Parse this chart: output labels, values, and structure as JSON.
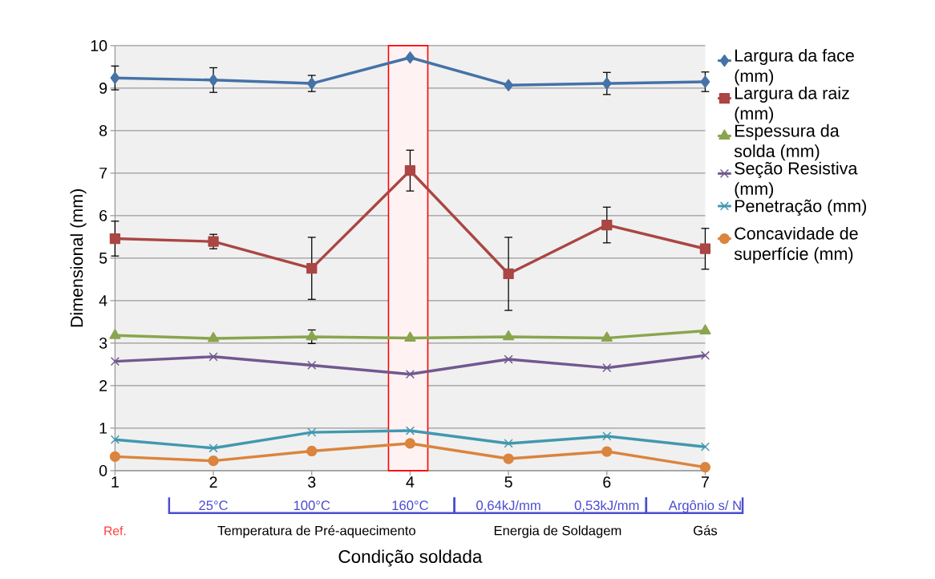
{
  "chart_data": {
    "type": "line",
    "xlabel": "Condição soldada",
    "ylabel": "Dimensional (mm)",
    "x": [
      1,
      2,
      3,
      4,
      5,
      6,
      7
    ],
    "xlim": [
      1,
      7
    ],
    "xticks": [
      1,
      2,
      3,
      4,
      5,
      6,
      7
    ],
    "ylim": [
      0,
      10
    ],
    "yticks": [
      0,
      1,
      2,
      3,
      4,
      5,
      6,
      7,
      8,
      9,
      10
    ],
    "grid": "y",
    "legend": "right",
    "series": [
      {
        "name": "Largura da face (mm)",
        "color": "#4572a7",
        "marker": "diamond",
        "values": [
          9.24,
          9.19,
          9.11,
          9.72,
          9.07,
          9.11,
          9.15
        ],
        "errors": [
          0.28,
          0.29,
          0.19,
          null,
          null,
          0.26,
          0.23
        ]
      },
      {
        "name": "Largura da raiz (mm)",
        "color": "#aa4643",
        "marker": "square",
        "values": [
          5.46,
          5.39,
          4.76,
          7.06,
          4.63,
          5.78,
          5.22
        ],
        "errors": [
          0.41,
          0.17,
          0.73,
          0.48,
          0.86,
          0.42,
          0.48
        ]
      },
      {
        "name": "Espessura da solda (mm)",
        "color": "#89a54e",
        "marker": "triangle",
        "values": [
          3.18,
          3.11,
          3.15,
          3.12,
          3.15,
          3.12,
          3.29
        ],
        "errors": [
          null,
          null,
          0.16,
          null,
          null,
          null,
          null
        ]
      },
      {
        "name": "Seção Resistiva (mm)",
        "color": "#71588f",
        "marker": "cross",
        "values": [
          2.57,
          2.68,
          2.48,
          2.27,
          2.62,
          2.42,
          2.71
        ]
      },
      {
        "name": "Penetração (mm)",
        "color": "#4198af",
        "marker": "cross",
        "values": [
          0.73,
          0.53,
          0.9,
          0.94,
          0.64,
          0.81,
          0.56
        ]
      },
      {
        "name": "Concavidade de superfície (mm)",
        "color": "#db843d",
        "marker": "circle",
        "values": [
          0.33,
          0.23,
          0.46,
          0.64,
          0.28,
          0.45,
          0.08
        ]
      }
    ],
    "bands": [
      {
        "axis": "x",
        "from": 3.78,
        "to": 4.18,
        "color": "#ff0000"
      }
    ],
    "annotations": [
      "Ref.",
      "25°C",
      "100°C",
      "160°C",
      "0,64kJ/mm",
      "0,53kJ/mm",
      "Argônio s/ N",
      "Temperatura de Pré-aquecimento",
      "Energia de Soldagem",
      "Gás"
    ]
  }
}
